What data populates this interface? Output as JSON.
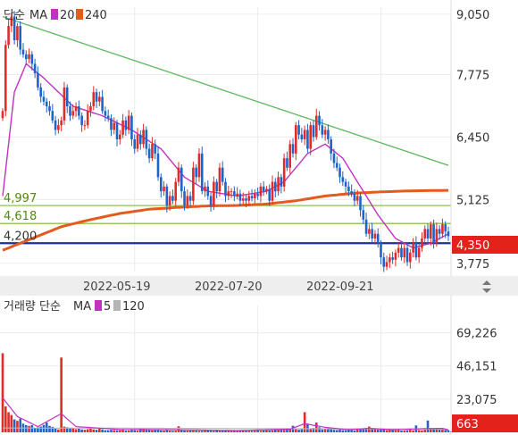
{
  "colors": {
    "up": "#e02b2b",
    "down": "#1f63c9",
    "ma_short": "#c232c2",
    "ma_long": "#e55a1f",
    "trend": "#5cb85c",
    "level_green": "#8bc34a",
    "level_support": "#1d2f8f",
    "badge": "#e3221c",
    "vol_ma_short": "#c232c2",
    "vol_ma_long": "#b5b5b5"
  },
  "price_panel": {
    "legend": {
      "type": "단순",
      "ma_label": "MA",
      "ma_short": "20",
      "ma_long": "240"
    },
    "y_ticks": [
      "9,050",
      "7,775",
      "6,450",
      "5,125",
      "3,775"
    ],
    "levels": [
      {
        "name": "level-4997",
        "value": 4997,
        "label": "4,997",
        "color_key": "level_green"
      },
      {
        "name": "level-4618",
        "value": 4618,
        "label": "4,618",
        "color_key": "level_green"
      },
      {
        "name": "level-4200",
        "value": 4200,
        "label": "4,200",
        "color_key": "level_support"
      }
    ],
    "current_price": "4,350",
    "current_value": 4350,
    "date_labels": [
      "2022-05-19",
      "2022-07-20",
      "2022-09-21"
    ]
  },
  "volume_panel": {
    "legend": {
      "type": "거래량 단순",
      "ma_label": "MA",
      "ma_short": "5",
      "ma_long": "120"
    },
    "y_ticks": [
      "69,226",
      "46,151",
      "23,075"
    ],
    "current_volume": "663"
  },
  "chart_data": {
    "type": "candlestick",
    "y_range": [
      3600,
      9200
    ],
    "y_ticks": [
      9050,
      7775,
      6450,
      5125,
      3775
    ],
    "date_ticks": [
      {
        "date": "2022-05-19",
        "index": 45
      },
      {
        "date": "2022-07-20",
        "index": 87
      },
      {
        "date": "2022-09-21",
        "index": 129
      }
    ],
    "candles": [
      {
        "segment_start": 0,
        "points": [
          7000,
          8400,
          8800,
          9000,
          8500,
          8800,
          8300,
          8200,
          8100,
          8200,
          8000
        ]
      },
      {
        "segment_start": 10,
        "points": [
          8000,
          7800,
          7500,
          7300,
          7200,
          7100,
          7000
        ]
      },
      {
        "segment_start": 16,
        "points": [
          7000,
          6800,
          6600,
          6700,
          6800,
          7500,
          7100,
          6900,
          7000,
          7100,
          6900,
          6700
        ]
      },
      {
        "segment_start": 28,
        "points": [
          6700,
          7000,
          7100,
          7400,
          7200,
          7300,
          7000,
          6900,
          6850
        ]
      },
      {
        "segment_start": 36,
        "points": [
          6850,
          6600,
          6750,
          6400,
          6500
        ]
      },
      {
        "segment_start": 40,
        "points": [
          6500,
          6800,
          6600,
          6900,
          6400,
          6200,
          6500,
          6300
        ]
      },
      {
        "segment_start": 47,
        "points": [
          6300,
          6600,
          6200,
          6000,
          6300,
          6100,
          5600,
          5300,
          5400,
          5000,
          5200
        ]
      },
      {
        "segment_start": 57,
        "points": [
          5200,
          5100,
          5500,
          5800,
          5300,
          5000,
          5200,
          5100
        ]
      },
      {
        "segment_start": 64,
        "points": [
          5100,
          5800,
          5600,
          6100,
          5300,
          5400,
          5200,
          5000
        ]
      },
      {
        "segment_start": 71,
        "points": [
          5000,
          5500,
          5300,
          5800,
          5500,
          5200,
          5300
        ]
      },
      {
        "segment_start": 77,
        "points": [
          5300,
          5300,
          5200,
          5250,
          5100,
          5150
        ]
      },
      {
        "segment_start": 82,
        "points": [
          5150,
          5100,
          5200,
          5150,
          5250,
          5200,
          5400,
          5300,
          5350,
          5100
        ]
      },
      {
        "segment_start": 91,
        "points": [
          5100,
          5500,
          5300,
          5600,
          5400,
          6000,
          5800,
          6300,
          6100
        ]
      },
      {
        "segment_start": 99,
        "points": [
          6100,
          6700,
          6500,
          6400,
          6600,
          6200,
          6700,
          6450
        ]
      },
      {
        "segment_start": 106,
        "points": [
          6450,
          6900,
          6700,
          6500,
          6600,
          6400
        ]
      },
      {
        "segment_start": 111,
        "points": [
          6400,
          6100,
          5900,
          5800,
          5600,
          5500
        ]
      },
      {
        "segment_start": 116,
        "points": [
          5500,
          5400,
          5300,
          5250,
          5100,
          5200
        ]
      },
      {
        "segment_start": 121,
        "points": [
          5200,
          4900,
          4700,
          4400,
          4500,
          4300,
          4400,
          4200
        ]
      },
      {
        "segment_start": 128,
        "points": [
          4200,
          3900,
          3700,
          3800,
          3900,
          3850
        ]
      },
      {
        "segment_start": 133,
        "points": [
          3850,
          4000,
          4100,
          3900,
          4100,
          3800,
          4000,
          4200,
          3900
        ]
      },
      {
        "segment_start": 141,
        "points": [
          3900,
          4100,
          4300,
          4500,
          4300,
          4600,
          4200,
          4500,
          4400,
          4600,
          4450,
          4350
        ]
      }
    ],
    "ma20_anchors": [
      [
        0,
        5200
      ],
      [
        4,
        7400
      ],
      [
        8,
        8000
      ],
      [
        14,
        7700
      ],
      [
        24,
        7100
      ],
      [
        34,
        6900
      ],
      [
        44,
        6600
      ],
      [
        54,
        6200
      ],
      [
        62,
        5600
      ],
      [
        70,
        5300
      ],
      [
        80,
        5200
      ],
      [
        90,
        5300
      ],
      [
        96,
        5500
      ],
      [
        104,
        6100
      ],
      [
        110,
        6300
      ],
      [
        116,
        6000
      ],
      [
        122,
        5400
      ],
      [
        128,
        4800
      ],
      [
        134,
        4300
      ],
      [
        140,
        4100
      ],
      [
        146,
        4200
      ],
      [
        152,
        4400
      ]
    ],
    "ma240_anchors": [
      [
        0,
        4050
      ],
      [
        10,
        4300
      ],
      [
        20,
        4550
      ],
      [
        30,
        4700
      ],
      [
        40,
        4830
      ],
      [
        50,
        4920
      ],
      [
        60,
        4960
      ],
      [
        70,
        4990
      ],
      [
        80,
        5000
      ],
      [
        90,
        5030
      ],
      [
        100,
        5100
      ],
      [
        110,
        5200
      ],
      [
        120,
        5260
      ],
      [
        130,
        5290
      ],
      [
        140,
        5310
      ],
      [
        152,
        5320
      ]
    ],
    "trendline": {
      "from": [
        0,
        9000
      ],
      "to": [
        152,
        5850
      ]
    },
    "volume": {
      "y_range": [
        0,
        82000
      ],
      "y_ticks": [
        69226,
        46151,
        23075
      ],
      "values": [
        55000,
        18000,
        14000,
        12000,
        9000,
        8000,
        9500,
        6000,
        5000,
        4500,
        5000,
        3000,
        3500,
        4000,
        5200,
        6800,
        4500,
        3800,
        2500,
        2000,
        52000,
        4000,
        3500,
        2800,
        3000,
        2200,
        2500,
        2000,
        1800,
        2200,
        2800,
        2000,
        1800,
        2500,
        2000,
        1500,
        1500,
        1800,
        1600,
        1400,
        1500,
        1800,
        1200,
        1300,
        1600,
        1400,
        1200,
        3000,
        2500,
        1800,
        1500,
        1400,
        1800,
        1600,
        1300,
        1200,
        1500,
        1200,
        1000,
        1100,
        4200,
        1500,
        1300,
        1200,
        1400,
        1200,
        1100,
        1000,
        1000,
        1200,
        1300,
        1100,
        1000,
        1800,
        1400,
        1200,
        1100,
        1000,
        1200,
        1300,
        1100,
        1000,
        1200,
        1100,
        1000,
        900,
        1100,
        1200,
        1000,
        1300,
        1500,
        1200,
        1400,
        1600,
        1800,
        2000,
        1700,
        2000,
        2200,
        4600,
        2500,
        1800,
        2200,
        14000,
        6000,
        2500,
        3000,
        6800,
        3500,
        2000,
        2500,
        3000,
        2200,
        1800,
        1600,
        2000,
        1500,
        1400,
        1800,
        1500,
        1300,
        2000,
        2500,
        2200,
        3000,
        4000,
        2500,
        2800,
        1800,
        2000,
        2200,
        1500,
        1600,
        1800,
        1400,
        1500,
        1200,
        1300,
        1500,
        1800,
        1400,
        4800,
        1600,
        1400,
        1800,
        8200,
        3000,
        2200,
        2500,
        1800,
        2000,
        1600,
        1500,
        663
      ],
      "ma5_anchors": [
        [
          0,
          24000
        ],
        [
          5,
          11000
        ],
        [
          12,
          4000
        ],
        [
          20,
          13000
        ],
        [
          25,
          4000
        ],
        [
          40,
          2000
        ],
        [
          60,
          1800
        ],
        [
          80,
          1200
        ],
        [
          98,
          2200
        ],
        [
          103,
          6000
        ],
        [
          110,
          3500
        ],
        [
          118,
          1800
        ],
        [
          125,
          2800
        ],
        [
          133,
          1800
        ],
        [
          143,
          2500
        ],
        [
          150,
          2800
        ],
        [
          152,
          1500
        ]
      ],
      "ma120_anchors": [
        [
          0,
          3000
        ],
        [
          50,
          2800
        ],
        [
          100,
          2500
        ],
        [
          152,
          2300
        ]
      ]
    }
  }
}
